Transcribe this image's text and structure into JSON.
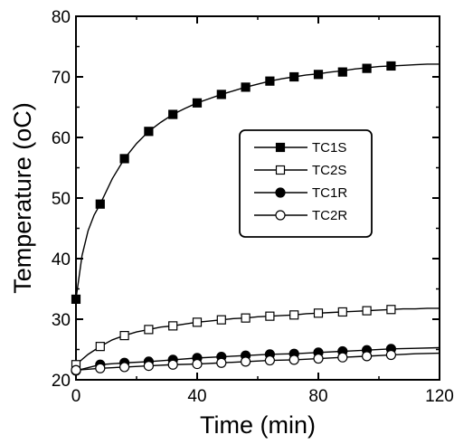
{
  "chart_data": {
    "type": "line",
    "title": "",
    "xlabel": "Time (min)",
    "ylabel": "Temperature (oC)",
    "xlim": [
      0,
      120
    ],
    "ylim": [
      20,
      80
    ],
    "xticks": [
      0,
      40,
      80,
      120
    ],
    "yticks": [
      20,
      30,
      40,
      50,
      60,
      70,
      80
    ],
    "grid": false,
    "legend_position": "center-right",
    "colors": {
      "ink": "#000000",
      "background": "#ffffff"
    },
    "x": [
      0,
      8,
      16,
      24,
      32,
      40,
      48,
      56,
      64,
      72,
      80,
      88,
      96,
      104
    ],
    "series": [
      {
        "name": "TC1S",
        "marker": "filled-square",
        "values": [
          33.3,
          49.0,
          56.5,
          61.0,
          63.8,
          65.7,
          67.1,
          68.3,
          69.3,
          70.0,
          70.4,
          70.8,
          71.4,
          71.8
        ],
        "curve": [
          [
            0,
            33.3
          ],
          [
            2,
            40.5
          ],
          [
            4,
            44.6
          ],
          [
            6,
            47.2
          ],
          [
            8,
            49.0
          ],
          [
            12,
            53.2
          ],
          [
            16,
            56.5
          ],
          [
            20,
            59.0
          ],
          [
            24,
            61.0
          ],
          [
            28,
            62.5
          ],
          [
            32,
            63.8
          ],
          [
            36,
            64.8
          ],
          [
            40,
            65.7
          ],
          [
            44,
            66.4
          ],
          [
            48,
            67.1
          ],
          [
            52,
            67.7
          ],
          [
            56,
            68.3
          ],
          [
            60,
            68.8
          ],
          [
            64,
            69.3
          ],
          [
            68,
            69.7
          ],
          [
            72,
            70.0
          ],
          [
            76,
            70.3
          ],
          [
            80,
            70.5
          ],
          [
            84,
            70.8
          ],
          [
            88,
            71.0
          ],
          [
            92,
            71.3
          ],
          [
            96,
            71.5
          ],
          [
            100,
            71.7
          ],
          [
            104,
            71.8
          ],
          [
            108,
            71.9
          ],
          [
            112,
            72.0
          ],
          [
            116,
            72.1
          ],
          [
            120,
            72.1
          ]
        ]
      },
      {
        "name": "TC2S",
        "marker": "open-square",
        "values": [
          22.5,
          25.5,
          27.3,
          28.3,
          28.9,
          29.5,
          29.9,
          30.2,
          30.5,
          30.7,
          31.0,
          31.2,
          31.4,
          31.6
        ],
        "curve": [
          [
            0,
            22.5
          ],
          [
            4,
            24.2
          ],
          [
            8,
            25.5
          ],
          [
            12,
            26.6
          ],
          [
            16,
            27.3
          ],
          [
            20,
            27.9
          ],
          [
            24,
            28.3
          ],
          [
            28,
            28.7
          ],
          [
            32,
            28.9
          ],
          [
            36,
            29.2
          ],
          [
            40,
            29.5
          ],
          [
            44,
            29.7
          ],
          [
            48,
            29.9
          ],
          [
            52,
            30.1
          ],
          [
            56,
            30.2
          ],
          [
            60,
            30.4
          ],
          [
            64,
            30.5
          ],
          [
            68,
            30.6
          ],
          [
            72,
            30.7
          ],
          [
            76,
            30.9
          ],
          [
            80,
            31.0
          ],
          [
            84,
            31.1
          ],
          [
            88,
            31.2
          ],
          [
            92,
            31.3
          ],
          [
            96,
            31.4
          ],
          [
            100,
            31.5
          ],
          [
            104,
            31.6
          ],
          [
            108,
            31.7
          ],
          [
            112,
            31.7
          ],
          [
            116,
            31.8
          ],
          [
            120,
            31.8
          ]
        ]
      },
      {
        "name": "TC1R",
        "marker": "filled-circle",
        "values": [
          21.5,
          22.5,
          22.8,
          23.0,
          23.3,
          23.6,
          23.8,
          24.0,
          24.2,
          24.3,
          24.5,
          24.7,
          24.9,
          25.1
        ],
        "curve": [
          [
            0,
            21.5
          ],
          [
            8,
            22.5
          ],
          [
            16,
            22.8
          ],
          [
            24,
            23.0
          ],
          [
            32,
            23.3
          ],
          [
            40,
            23.6
          ],
          [
            48,
            23.8
          ],
          [
            56,
            24.0
          ],
          [
            64,
            24.2
          ],
          [
            72,
            24.3
          ],
          [
            80,
            24.5
          ],
          [
            88,
            24.7
          ],
          [
            96,
            24.9
          ],
          [
            104,
            25.1
          ],
          [
            112,
            25.2
          ],
          [
            120,
            25.3
          ]
        ]
      },
      {
        "name": "TC2R",
        "marker": "open-circle",
        "values": [
          21.6,
          21.9,
          22.1,
          22.3,
          22.5,
          22.6,
          22.8,
          23.0,
          23.2,
          23.3,
          23.5,
          23.7,
          23.9,
          24.1
        ],
        "curve": [
          [
            0,
            21.6
          ],
          [
            8,
            21.9
          ],
          [
            16,
            22.1
          ],
          [
            24,
            22.3
          ],
          [
            32,
            22.5
          ],
          [
            40,
            22.6
          ],
          [
            48,
            22.8
          ],
          [
            56,
            23.0
          ],
          [
            64,
            23.2
          ],
          [
            72,
            23.3
          ],
          [
            80,
            23.5
          ],
          [
            88,
            23.7
          ],
          [
            96,
            23.9
          ],
          [
            104,
            24.1
          ],
          [
            112,
            24.3
          ],
          [
            120,
            24.4
          ]
        ]
      }
    ]
  }
}
